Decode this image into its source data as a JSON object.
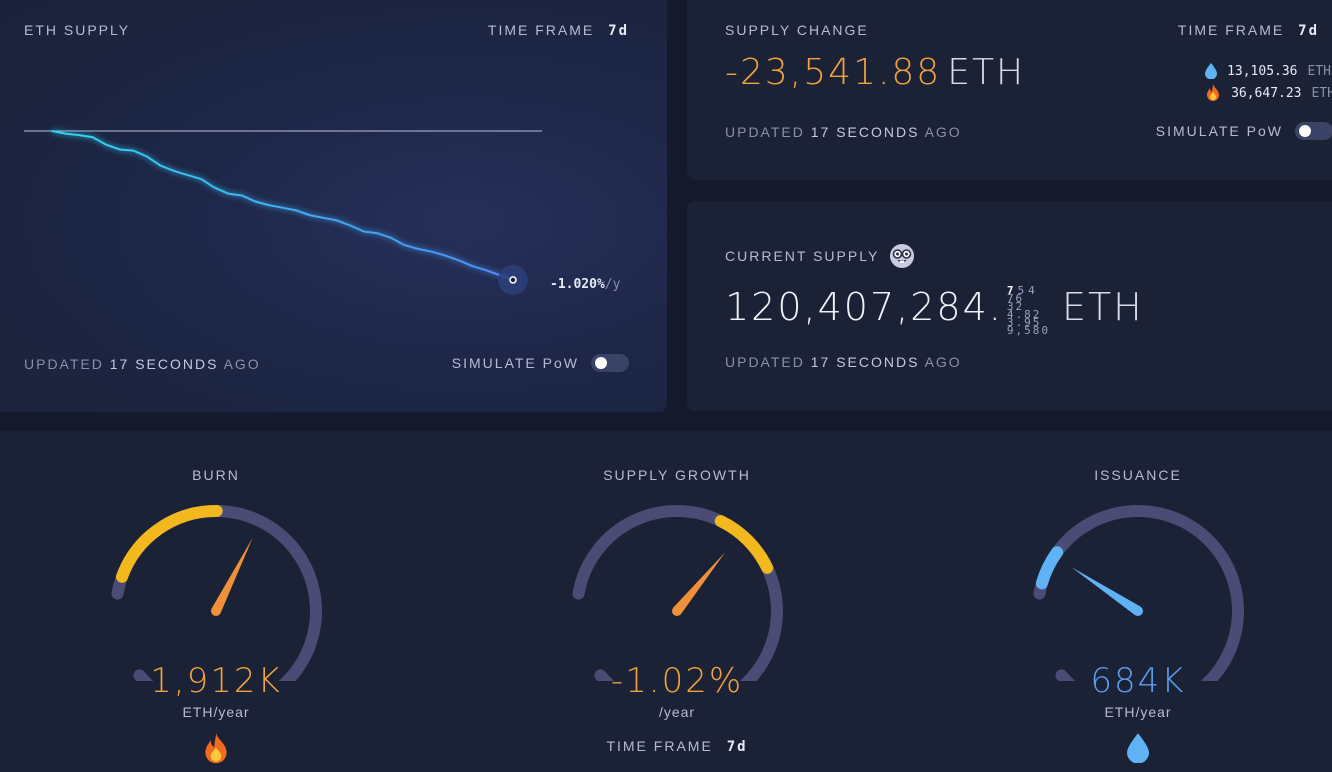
{
  "supply_chart": {
    "title": "ETH SUPPLY",
    "time_frame_label": "TIME FRAME",
    "time_frame_value": "7d",
    "rate_value": "-1.020%",
    "rate_suffix": "/y",
    "updated_prefix": "UPDATED",
    "updated_number": "17",
    "updated_unit": "SECONDS",
    "updated_suffix": "AGO",
    "simulate_label": "SIMULATE PoW",
    "simulate_on": false,
    "line_color": "#2fd4f0",
    "line_end_color": "#4c8cf5",
    "baseline_color": "#b8bed8",
    "trend": [
      0,
      -0.01,
      -0.03,
      -0.05,
      -0.09,
      -0.12,
      -0.14,
      -0.18,
      -0.23,
      -0.27,
      -0.31,
      -0.33,
      -0.38,
      -0.43,
      -0.45,
      -0.48,
      -0.5,
      -0.53,
      -0.55,
      -0.57,
      -0.59,
      -0.62,
      -0.65,
      -0.68,
      -0.7,
      -0.74,
      -0.78,
      -0.8,
      -0.83,
      -0.86,
      -0.88,
      -0.92,
      -0.96,
      -0.99,
      -1.02
    ]
  },
  "supply_change": {
    "title": "SUPPLY CHANGE",
    "time_frame_label": "TIME FRAME",
    "time_frame_value": "7d",
    "value": "-23,541.88",
    "unit": "ETH",
    "issuance_value": "13,105.36",
    "issuance_unit": "ETH",
    "burn_value": "36,647.23",
    "burn_unit": "ETH",
    "updated_prefix": "UPDATED",
    "updated_number": "17",
    "updated_unit": "SECONDS",
    "updated_suffix": "AGO",
    "simulate_label": "SIMULATE PoW",
    "simulate_on": false,
    "value_color": "#f1a23c"
  },
  "current_supply": {
    "title": "CURRENT SUPPLY",
    "value": "120,407,284.",
    "rolling_digits": [
      "7",
      "5",
      "4",
      "76",
      "32",
      "4.82",
      "3.95",
      "9,580"
    ],
    "unit": "ETH",
    "updated_prefix": "UPDATED",
    "updated_number": "17",
    "updated_unit": "SECONDS",
    "updated_suffix": "AGO"
  },
  "gauges": {
    "burn": {
      "title": "BURN",
      "value": "1,912K",
      "unit": "ETH/year",
      "icon": "fire-icon",
      "value_color": "#f1a23c",
      "level": 0.38
    },
    "supply_growth": {
      "title": "SUPPLY GROWTH",
      "value": "-1.02%",
      "unit": "/year",
      "time_frame_label": "TIME FRAME",
      "time_frame_value": "7d",
      "value_color": "#f1a23c",
      "level": 0.42
    },
    "issuance": {
      "title": "ISSUANCE",
      "value": "684K",
      "unit": "ETH/year",
      "icon": "droplet-icon",
      "value_color": "#5b9cf0",
      "level": 0.12
    }
  },
  "colors": {
    "track": "#4a4c75",
    "burn_arc": "#f2b81d",
    "issuance_arc": "#5fb3f5",
    "needle": "#f0913a"
  }
}
